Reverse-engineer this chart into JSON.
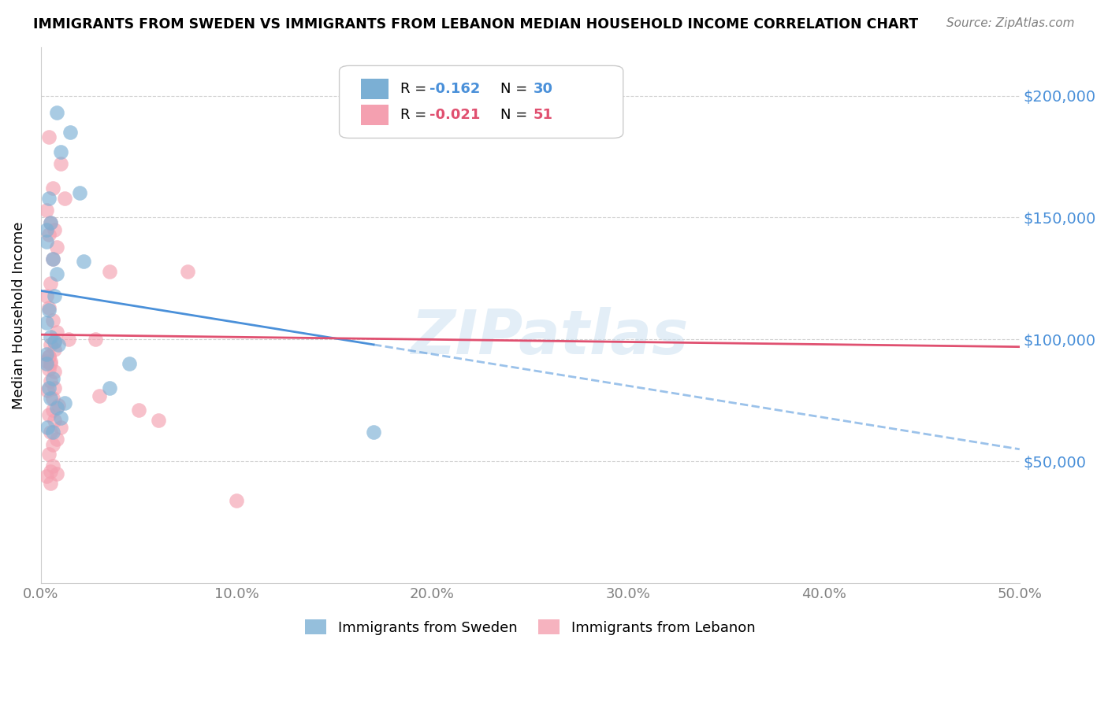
{
  "title": "IMMIGRANTS FROM SWEDEN VS IMMIGRANTS FROM LEBANON MEDIAN HOUSEHOLD INCOME CORRELATION CHART",
  "source": "Source: ZipAtlas.com",
  "ylabel": "Median Household Income",
  "y_ticks": [
    50000,
    100000,
    150000,
    200000
  ],
  "y_tick_labels": [
    "$50,000",
    "$100,000",
    "$150,000",
    "$200,000"
  ],
  "x_tick_labels": [
    "0.0%",
    "10.0%",
    "20.0%",
    "30.0%",
    "40.0%",
    "50.0%"
  ],
  "x_ticks": [
    0,
    10,
    20,
    30,
    40,
    50
  ],
  "ylim": [
    0,
    220000
  ],
  "xlim": [
    0,
    50
  ],
  "sweden_color": "#7bafd4",
  "lebanon_color": "#f4a0b0",
  "sweden_line_color": "#4a90d9",
  "lebanon_line_color": "#e05070",
  "sweden_R": -0.162,
  "sweden_N": 30,
  "lebanon_R": -0.021,
  "lebanon_N": 51,
  "legend_label_sweden": "Immigrants from Sweden",
  "legend_label_lebanon": "Immigrants from Lebanon",
  "watermark": "ZIPatlas",
  "background_color": "#ffffff",
  "sweden_scatter_x": [
    0.8,
    1.5,
    1.0,
    2.0,
    0.4,
    0.5,
    0.3,
    0.3,
    0.6,
    0.8,
    0.7,
    2.2,
    0.4,
    0.3,
    0.5,
    0.7,
    0.9,
    0.3,
    0.3,
    0.6,
    0.4,
    0.5,
    4.5,
    3.5,
    0.8,
    1.0,
    17.0,
    0.35,
    0.6,
    1.2
  ],
  "sweden_scatter_y": [
    193000,
    185000,
    177000,
    160000,
    158000,
    148000,
    145000,
    140000,
    133000,
    127000,
    118000,
    132000,
    112000,
    107000,
    101000,
    99000,
    98000,
    94000,
    90000,
    84000,
    80000,
    76000,
    90000,
    80000,
    72000,
    68000,
    62000,
    64000,
    62000,
    74000
  ],
  "lebanon_scatter_x": [
    0.4,
    1.0,
    0.6,
    1.2,
    0.3,
    0.5,
    0.7,
    0.4,
    0.8,
    0.6,
    0.5,
    0.3,
    0.4,
    0.6,
    0.8,
    1.4,
    0.5,
    0.7,
    0.4,
    0.3,
    0.5,
    0.4,
    0.7,
    2.8,
    3.5,
    3.0,
    0.9,
    0.6,
    0.4,
    0.7,
    1.0,
    0.5,
    0.8,
    0.6,
    5.0,
    6.0,
    0.4,
    0.6,
    0.5,
    0.8,
    7.5,
    0.3,
    0.5,
    0.7,
    0.4,
    0.5,
    10.0,
    0.5,
    0.7,
    0.35,
    0.6
  ],
  "lebanon_scatter_y": [
    183000,
    172000,
    162000,
    158000,
    153000,
    148000,
    145000,
    143000,
    138000,
    133000,
    123000,
    118000,
    113000,
    108000,
    103000,
    100000,
    98000,
    96000,
    93000,
    91000,
    90000,
    88000,
    87000,
    100000,
    128000,
    77000,
    73000,
    71000,
    69000,
    67000,
    64000,
    62000,
    59000,
    57000,
    71000,
    67000,
    53000,
    48000,
    46000,
    45000,
    128000,
    44000,
    41000,
    99000,
    93000,
    91000,
    34000,
    83000,
    80000,
    79000,
    76000
  ],
  "sw_line_x0": 0.0,
  "sw_line_y0": 120000,
  "sw_line_x1": 50.0,
  "sw_line_y1": 55000,
  "sw_solid_end": 17.0,
  "lb_line_x0": 0.0,
  "lb_line_y0": 102000,
  "lb_line_x1": 50.0,
  "lb_line_y1": 97000
}
